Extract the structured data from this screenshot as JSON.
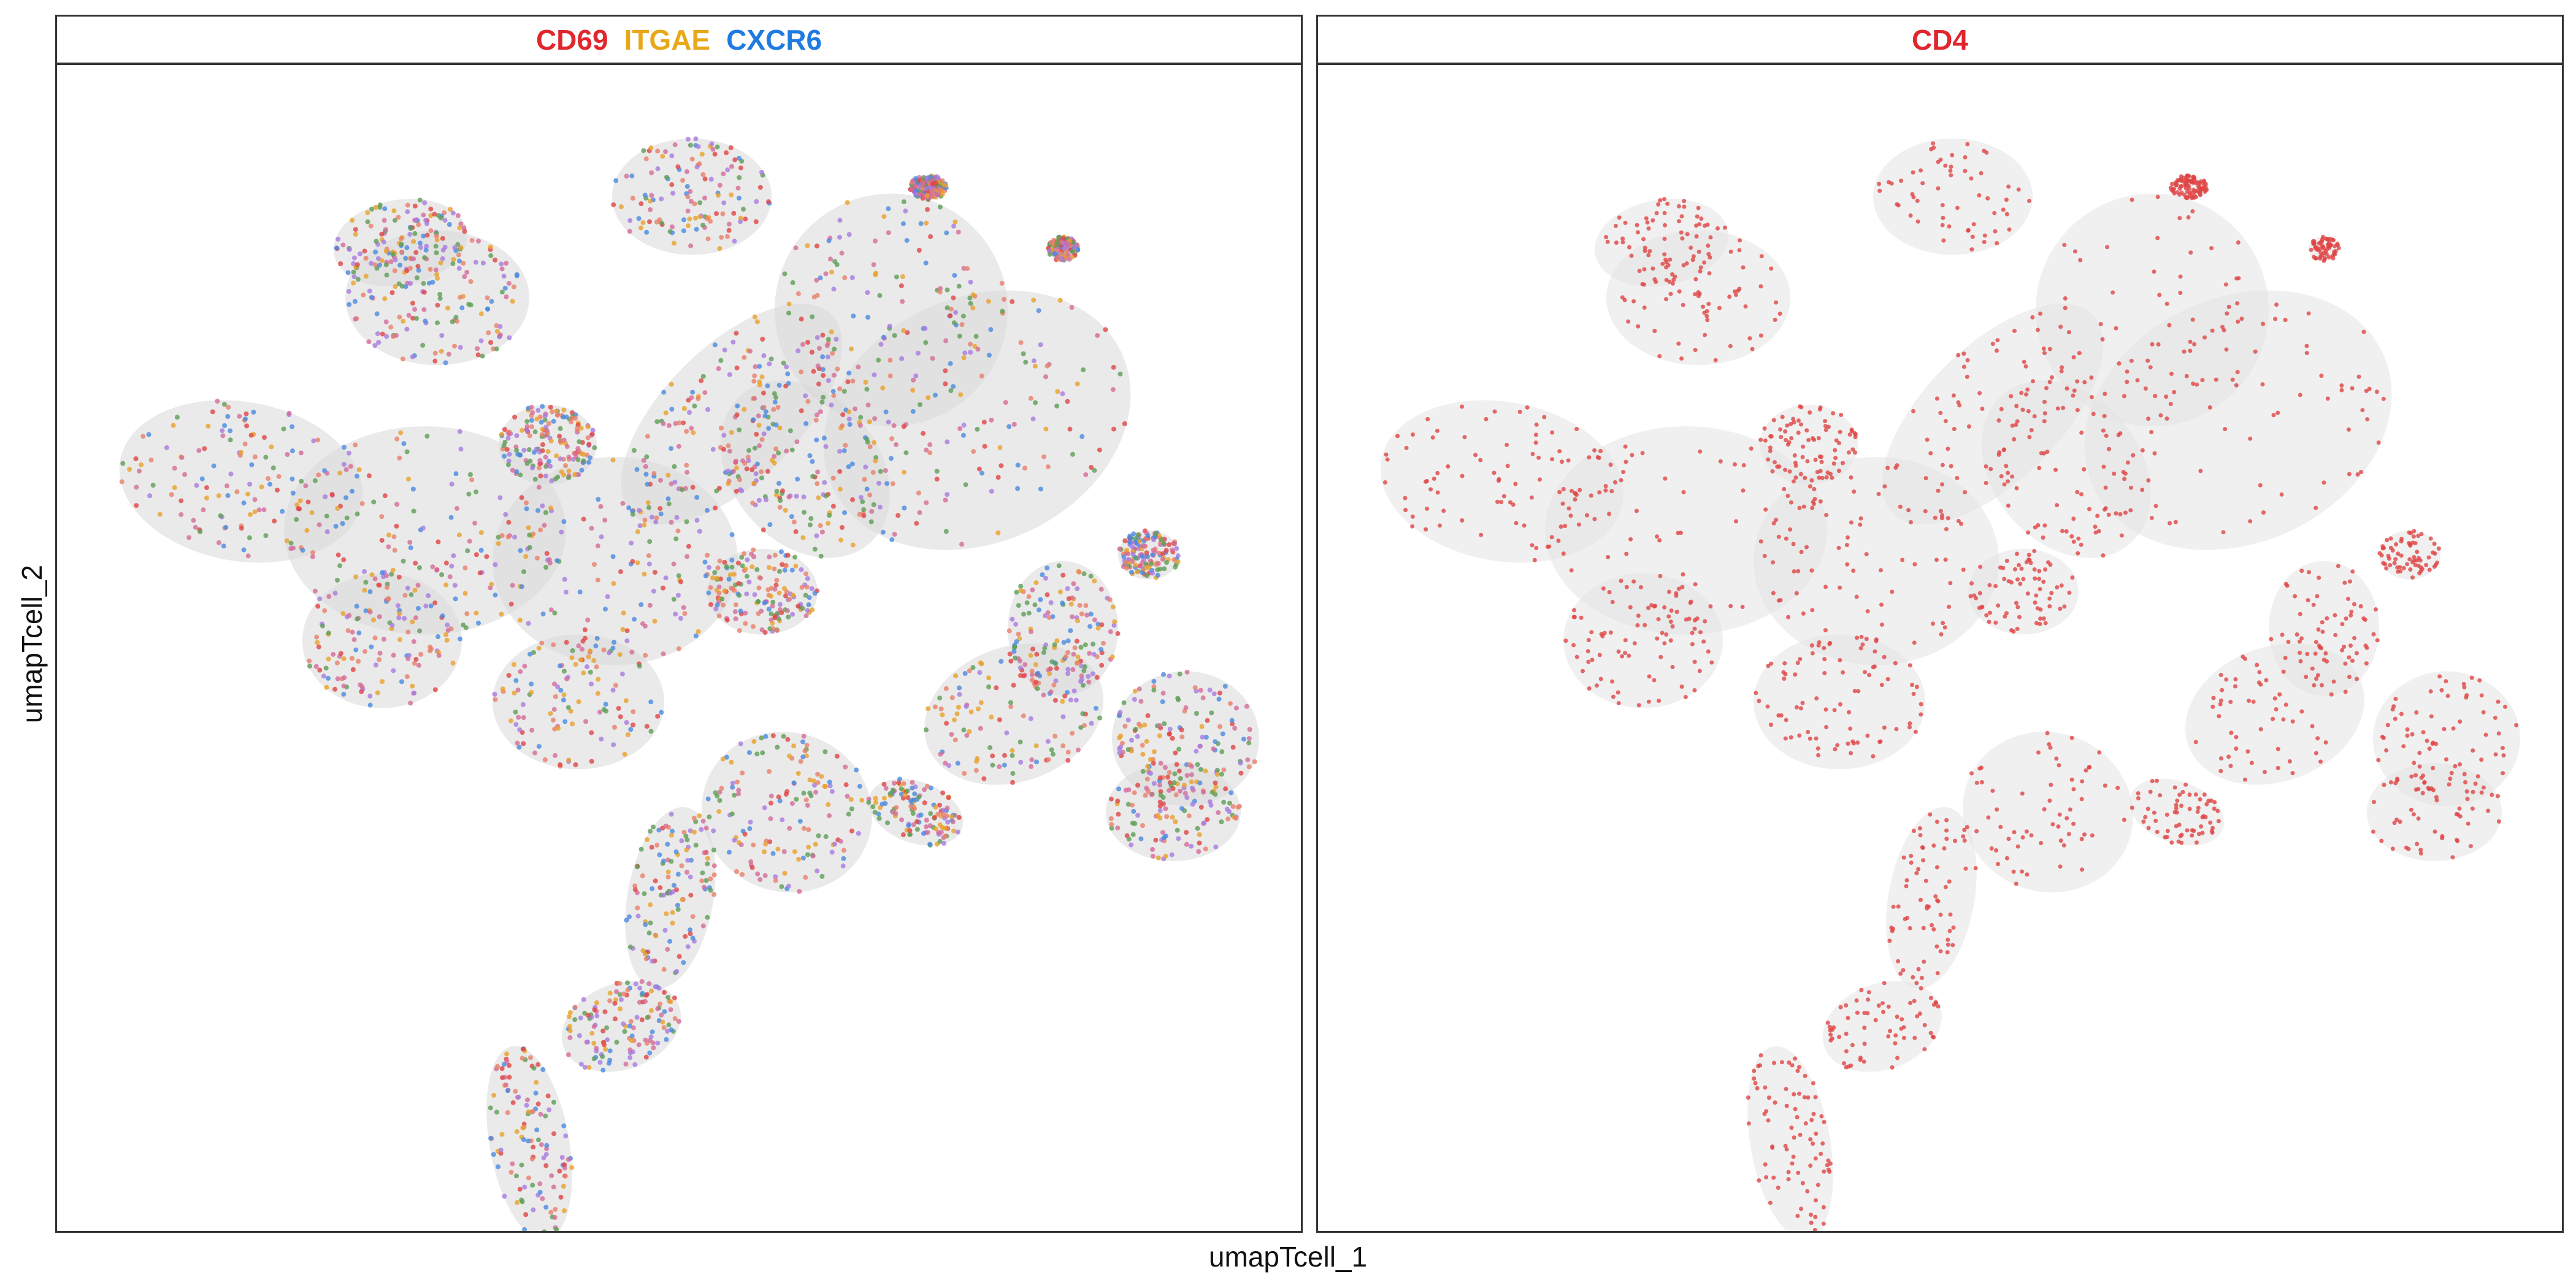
{
  "chart_data": [
    {
      "type": "scatter",
      "title_parts": [
        {
          "text": "CD69",
          "color": "#E0272D"
        },
        {
          "text": "ITGAE",
          "color": "#E8A818"
        },
        {
          "text": "CXCR6",
          "color": "#1F7BE0"
        }
      ],
      "xlabel": "umapTcell_1",
      "ylabel": "umapTcell_2",
      "legend": "none",
      "grid": false,
      "point_colors": [
        "#E04545",
        "#E8A02A",
        "#4A8AE0",
        "#A77BE0",
        "#5E9E55",
        "#E8806A",
        "#D46B9A"
      ],
      "background_color": "#D8D8D8"
    },
    {
      "type": "scatter",
      "title_parts": [
        {
          "text": "CD4",
          "color": "#E0272D"
        }
      ],
      "xlabel": "umapTcell_1",
      "ylabel": "umapTcell_2",
      "legend": "none",
      "grid": false,
      "point_colors": [
        "#E04545"
      ],
      "background_color": "#E3E3E3"
    }
  ],
  "axes": {
    "xlabel": "umapTcell_1",
    "ylabel": "umapTcell_2"
  }
}
